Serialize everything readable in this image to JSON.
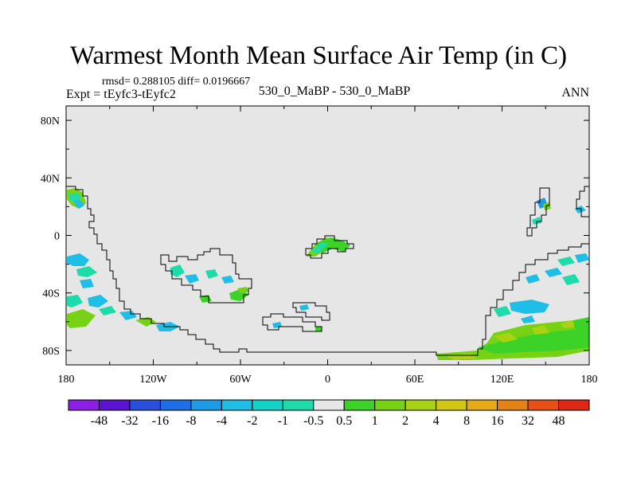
{
  "title": "Warmest Month Mean Surface Air Temp (in C)",
  "stats": "rmsd= 0.288105 diff= 0.0196667",
  "expt": "Expt = tEyfc3-tEyfc2",
  "case": "530_0_MaBP - 530_0_MaBP",
  "season": "ANN",
  "map": {
    "lon_range": [
      -180,
      180
    ],
    "lat_range": [
      -90,
      90
    ],
    "land_fill": "#e6e6e6",
    "coast_color": "#000000",
    "lat_ticks": [
      {
        "lat": 80,
        "label": "80N"
      },
      {
        "lat": 40,
        "label": "40N"
      },
      {
        "lat": 0,
        "label": "0"
      },
      {
        "lat": -40,
        "label": "40S"
      },
      {
        "lat": -80,
        "label": "80S"
      }
    ],
    "lon_ticks": [
      {
        "lon": -180,
        "label": "180"
      },
      {
        "lon": -120,
        "label": "120W"
      },
      {
        "lon": -60,
        "label": "60W"
      },
      {
        "lon": 0,
        "label": "0"
      },
      {
        "lon": 60,
        "label": "60E"
      },
      {
        "lon": 120,
        "label": "120E"
      },
      {
        "lon": 180,
        "label": "180"
      }
    ]
  },
  "colorbar": {
    "colors": [
      "#8c1ee6",
      "#5a14d2",
      "#2850dc",
      "#1e6ee6",
      "#1e9be6",
      "#1ebee6",
      "#14d2c8",
      "#1edcaa",
      "#e6e6e6",
      "#3cd228",
      "#78d214",
      "#aad214",
      "#d2c814",
      "#e6aa14",
      "#e68214",
      "#e65014",
      "#dc2814"
    ],
    "labels": [
      "-48",
      "-32",
      "-16",
      "-8",
      "-4",
      "-2",
      "-1",
      "-0.5",
      "0.5",
      "1",
      "2",
      "4",
      "8",
      "16",
      "32",
      "48"
    ]
  }
}
